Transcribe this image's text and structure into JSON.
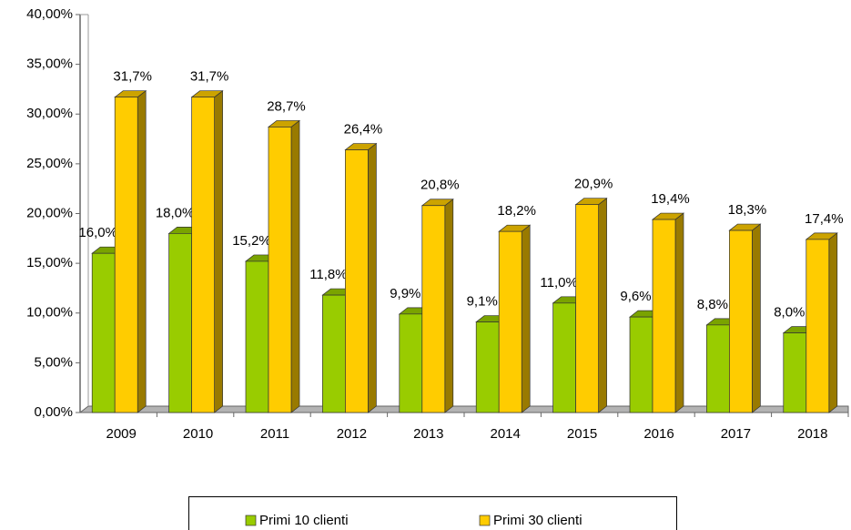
{
  "chart_data": {
    "type": "bar3d",
    "categories": [
      "2009",
      "2010",
      "2011",
      "2012",
      "2013",
      "2014",
      "2015",
      "2016",
      "2017",
      "2018"
    ],
    "series": [
      {
        "name": "Primi 10 clienti",
        "color": "#99cc00",
        "values": [
          16.0,
          18.0,
          15.2,
          11.8,
          9.9,
          9.1,
          11.0,
          9.6,
          8.8,
          8.0
        ],
        "value_labels": [
          "16,0%",
          "18,0%",
          "15,2%",
          "11,8%",
          "9,9%",
          "9,1%",
          "11,0%",
          "9,6%",
          "8,8%",
          "8,0%"
        ]
      },
      {
        "name": "Primi 30 clienti",
        "color": "#ffcc00",
        "values": [
          31.7,
          31.7,
          28.7,
          26.4,
          20.8,
          18.2,
          20.9,
          19.4,
          18.3,
          17.4
        ],
        "value_labels": [
          "31,7%",
          "31,7%",
          "28,7%",
          "26,4%",
          "20,8%",
          "18,2%",
          "20,9%",
          "19,4%",
          "18,3%",
          "17,4%"
        ]
      }
    ],
    "ylim": [
      0,
      40
    ],
    "yticks": [
      {
        "value": 0,
        "label": "0,00%"
      },
      {
        "value": 5,
        "label": "5,00%"
      },
      {
        "value": 10,
        "label": "10,00%"
      },
      {
        "value": 15,
        "label": "15,00%"
      },
      {
        "value": 20,
        "label": "20,00%"
      },
      {
        "value": 25,
        "label": "25,00%"
      },
      {
        "value": 30,
        "label": "30,00%"
      },
      {
        "value": 35,
        "label": "35,00%"
      },
      {
        "value": 40,
        "label": "40,00%"
      }
    ],
    "legend": "bottom"
  }
}
